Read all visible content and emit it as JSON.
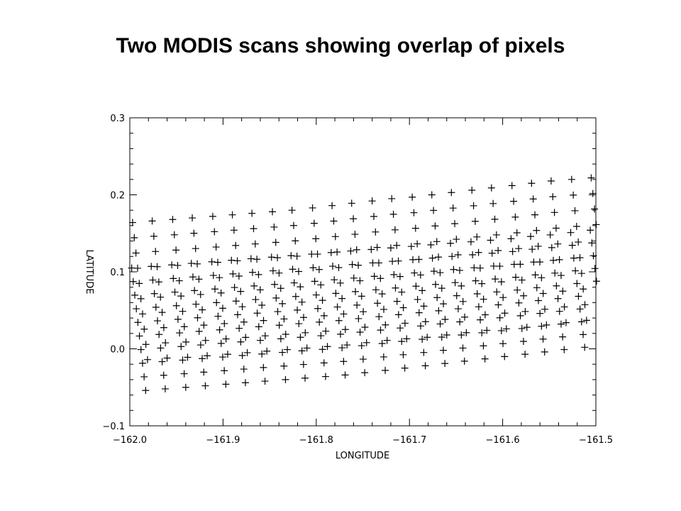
{
  "slide": {
    "title": "Two MODIS scans showing overlap of pixels"
  },
  "chart_data": {
    "type": "scatter",
    "marker": "plus",
    "marker_color": "#000000",
    "xlabel": "LONGITUDE",
    "ylabel": "LATITUDE",
    "xlim": [
      -162.0,
      -161.5
    ],
    "ylim": [
      -0.1,
      0.3
    ],
    "xticks": [
      -162.0,
      -161.9,
      -161.8,
      -161.7,
      -161.6,
      -161.5
    ],
    "xtick_labels": [
      "−162.0",
      "−161.9",
      "−161.8",
      "−161.7",
      "−161.6",
      "−161.5"
    ],
    "yticks": [
      -0.1,
      0.0,
      0.1,
      0.2,
      0.3
    ],
    "ytick_labels": [
      "−0.1",
      "0.0",
      "0.1",
      "0.2",
      "0.3"
    ],
    "grid": false,
    "series": [
      {
        "x": [
          -161.997,
          -161.976,
          -161.954,
          -161.933,
          -161.911,
          -161.89,
          -161.869,
          -161.847,
          -161.826,
          -161.804,
          -161.783,
          -161.762,
          -161.74,
          -161.719,
          -161.697,
          -161.676,
          -161.655,
          -161.633,
          -161.612,
          -161.59,
          -161.569,
          -161.548,
          -161.526,
          -161.505
        ],
        "y_top": [
          0.164,
          0.166,
          0.168,
          0.17,
          0.172,
          0.174,
          0.176,
          0.178,
          0.18,
          0.183,
          0.186,
          0.189,
          0.192,
          0.195,
          0.197,
          0.2,
          0.203,
          0.206,
          0.209,
          0.212,
          0.215,
          0.218,
          0.22,
          0.222
        ],
        "y_bottom": [
          -0.014,
          -0.012,
          -0.011,
          -0.009,
          -0.007,
          -0.005,
          -0.003,
          -0.001,
          0.001,
          0.003,
          0.005,
          0.008,
          0.011,
          0.013,
          0.015,
          0.018,
          0.021,
          0.024,
          0.026,
          0.028,
          0.031,
          0.034,
          0.037,
          0.04
        ],
        "points_per_line": 10,
        "lon_drift": 0.016
      },
      {
        "x": [
          -161.998,
          -161.977,
          -161.955,
          -161.934,
          -161.912,
          -161.891,
          -161.87,
          -161.848,
          -161.827,
          -161.805,
          -161.784,
          -161.763,
          -161.741,
          -161.72,
          -161.698,
          -161.677,
          -161.656,
          -161.634,
          -161.613,
          -161.591,
          -161.57,
          -161.549,
          -161.527,
          -161.506
        ],
        "y_top": [
          0.105,
          0.107,
          0.109,
          0.111,
          0.113,
          0.115,
          0.117,
          0.119,
          0.121,
          0.123,
          0.125,
          0.127,
          0.129,
          0.131,
          0.133,
          0.135,
          0.137,
          0.139,
          0.141,
          0.143,
          0.146,
          0.148,
          0.151,
          0.154
        ],
        "y_bottom": [
          -0.054,
          -0.052,
          -0.05,
          -0.048,
          -0.046,
          -0.044,
          -0.042,
          -0.04,
          -0.038,
          -0.036,
          -0.034,
          -0.031,
          -0.028,
          -0.025,
          -0.022,
          -0.019,
          -0.016,
          -0.013,
          -0.01,
          -0.007,
          -0.004,
          -0.001,
          0.002,
          0.005
        ],
        "points_per_line": 10,
        "lon_drift": 0.015
      }
    ]
  }
}
